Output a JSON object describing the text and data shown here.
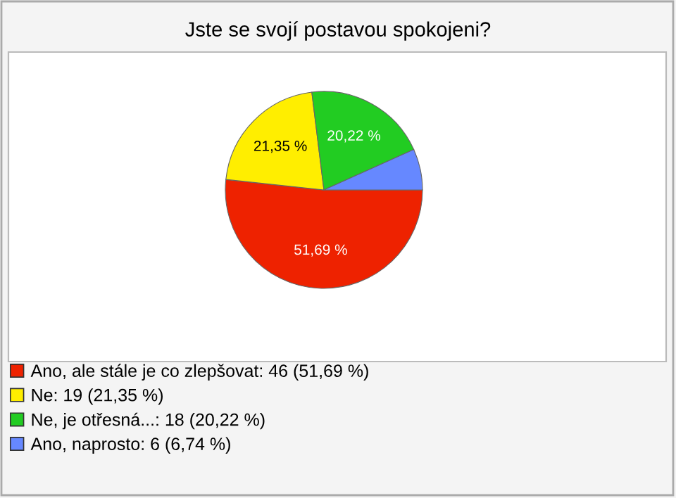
{
  "chart_data": {
    "type": "pie",
    "title": "Jste se svojí postavou spokojeni?",
    "categories": [
      "Ano, ale stále je co zlepšovat: 46 (51,69 %)",
      "Ne: 19 (21,35 %)",
      "Ne, je otřesná...: 18 (20,22 %)",
      "Ano, naprosto: 6 (6,74 %)"
    ],
    "values": [
      51.69,
      21.35,
      20.22,
      6.74
    ],
    "colors": [
      "#ee2200",
      "#ffee00",
      "#22cc22",
      "#6688ff"
    ],
    "value_labels": [
      "51,69 %",
      "21,35 %",
      "20,22 %",
      null
    ],
    "legend": "bottom"
  }
}
